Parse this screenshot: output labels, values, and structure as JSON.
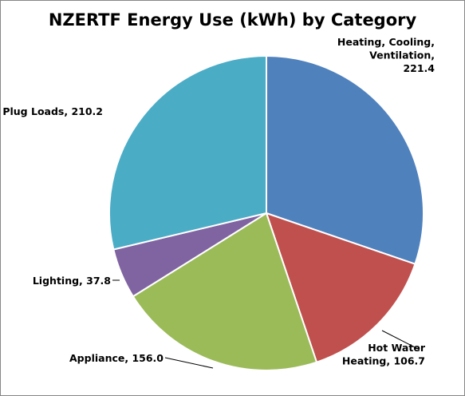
{
  "chart_data": {
    "type": "pie",
    "title": "NZERTF Energy Use (kWh) by Category",
    "slices": [
      {
        "label": "Heating, Cooling, Ventilation",
        "value": 221.4,
        "label_text": "Heating, Cooling,|Ventilation,|221.4",
        "color": "#4F81BD"
      },
      {
        "label": "Hot Water Heating",
        "value": 106.7,
        "label_text": "Hot Water|Heating, 106.7",
        "color": "#C0504D"
      },
      {
        "label": "Appliance",
        "value": 156.0,
        "label_text": "Appliance, 156.0",
        "color": "#9BBB59"
      },
      {
        "label": "Lighting",
        "value": 37.8,
        "label_text": "Lighting, 37.8",
        "color": "#8064A2"
      },
      {
        "label": "Plug Loads",
        "value": 210.2,
        "label_text": "Plug Loads, 210.2",
        "color": "#4BACC6"
      }
    ],
    "start_angle": "12 o'clock",
    "direction": "clockwise",
    "legend": "none",
    "data_labels": "outside with leader lines"
  }
}
